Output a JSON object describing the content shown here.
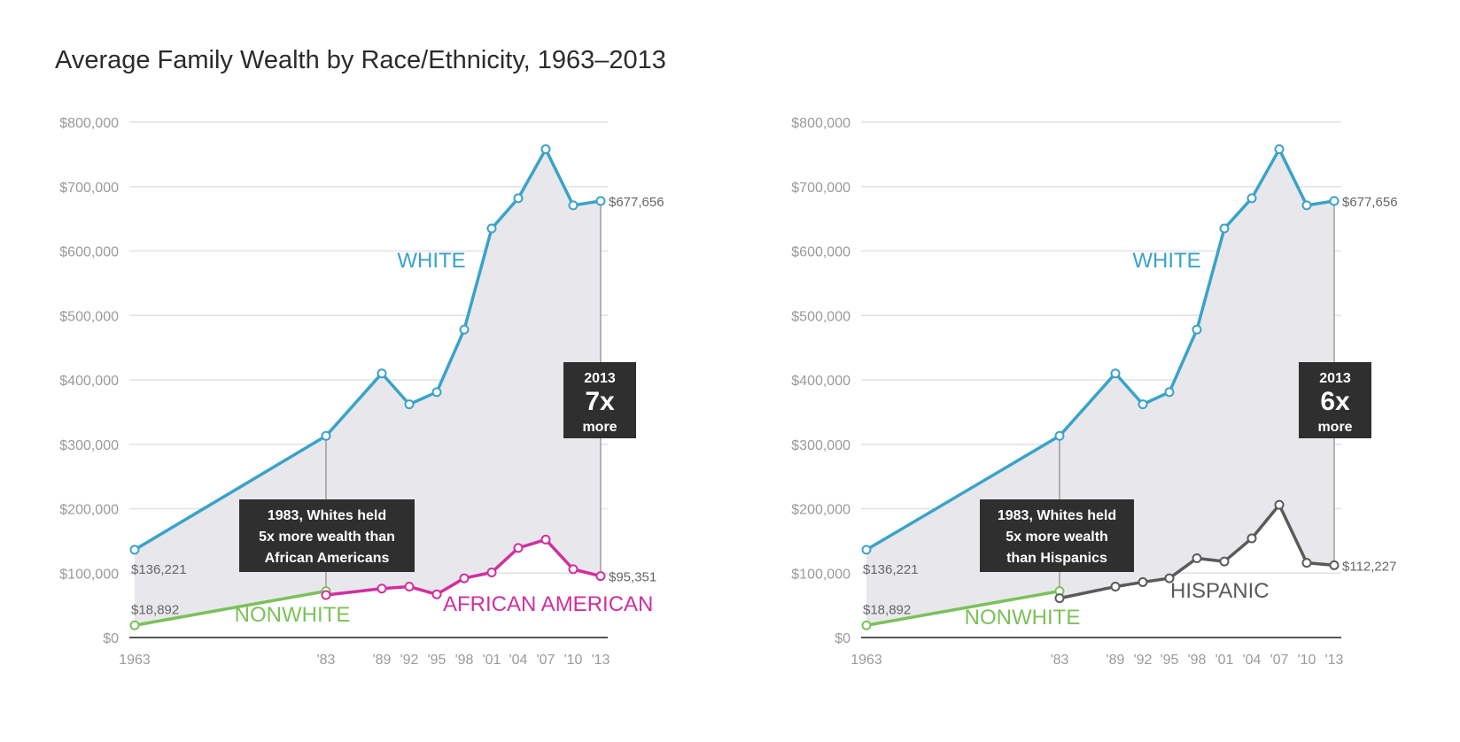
{
  "title": "Average Family Wealth by Race/Ethnicity, 1963–2013",
  "colors": {
    "white": "#3aa3c9",
    "nonwhite": "#7bc159",
    "african_american": "#d12f9e",
    "hispanic": "#5a5a5a",
    "fill": "#e8e8ec",
    "box": "#2f2f2f",
    "grid": "#e2e2e6"
  },
  "chart_data": [
    {
      "type": "line",
      "x": [
        1963,
        1983,
        1989,
        1992,
        1995,
        1998,
        2001,
        2004,
        2007,
        2010,
        2013
      ],
      "x_tick_labels": [
        "1963",
        "'83",
        "'89",
        "'92",
        "'95",
        "'98",
        "'01",
        "'04",
        "'07",
        "'10",
        "'13"
      ],
      "ylim": [
        0,
        800000
      ],
      "y_ticks": [
        0,
        100000,
        200000,
        300000,
        400000,
        500000,
        600000,
        700000,
        800000
      ],
      "y_tick_labels": [
        "$0",
        "$100,000",
        "$200,000",
        "$300,000",
        "$400,000",
        "$500,000",
        "$600,000",
        "$700,000",
        "$800,000"
      ],
      "grid": true,
      "series": [
        {
          "name": "WHITE",
          "x": [
            1963,
            1983,
            1989,
            1992,
            1995,
            1998,
            2001,
            2004,
            2007,
            2010,
            2013
          ],
          "values": [
            136221,
            313000,
            410000,
            362000,
            381000,
            478000,
            635000,
            682000,
            758000,
            671000,
            677656
          ]
        },
        {
          "name": "NONWHITE",
          "x": [
            1963,
            1983
          ],
          "values": [
            18892,
            72000
          ]
        },
        {
          "name": "AFRICAN AMERICAN",
          "x": [
            1983,
            1989,
            1992,
            1995,
            1998,
            2001,
            2004,
            2007,
            2010,
            2013
          ],
          "values": [
            66000,
            76000,
            79000,
            67000,
            92000,
            101000,
            139000,
            152000,
            106000,
            95351
          ]
        }
      ],
      "annotations": {
        "start_white": "$136,221",
        "start_nonwhite": "$18,892",
        "end_white": "$677,656",
        "end_minority": "$95,351",
        "note_1983": [
          "1983, Whites held",
          "5x more wealth than",
          "African Americans"
        ],
        "ratio_year": "2013",
        "ratio_value": "7x",
        "ratio_suffix": "more"
      }
    },
    {
      "type": "line",
      "x": [
        1963,
        1983,
        1989,
        1992,
        1995,
        1998,
        2001,
        2004,
        2007,
        2010,
        2013
      ],
      "x_tick_labels": [
        "1963",
        "'83",
        "'89",
        "'92",
        "'95",
        "'98",
        "'01",
        "'04",
        "'07",
        "'10",
        "'13"
      ],
      "ylim": [
        0,
        800000
      ],
      "y_ticks": [
        0,
        100000,
        200000,
        300000,
        400000,
        500000,
        600000,
        700000,
        800000
      ],
      "y_tick_labels": [
        "$0",
        "$100,000",
        "$200,000",
        "$300,000",
        "$400,000",
        "$500,000",
        "$600,000",
        "$700,000",
        "$800,000"
      ],
      "grid": true,
      "series": [
        {
          "name": "WHITE",
          "x": [
            1963,
            1983,
            1989,
            1992,
            1995,
            1998,
            2001,
            2004,
            2007,
            2010,
            2013
          ],
          "values": [
            136221,
            313000,
            410000,
            362000,
            381000,
            478000,
            635000,
            682000,
            758000,
            671000,
            677656
          ]
        },
        {
          "name": "NONWHITE",
          "x": [
            1963,
            1983
          ],
          "values": [
            18892,
            72000
          ]
        },
        {
          "name": "HISPANIC",
          "x": [
            1983,
            1989,
            1992,
            1995,
            1998,
            2001,
            2004,
            2007,
            2010,
            2013
          ],
          "values": [
            61000,
            79000,
            86000,
            92000,
            123000,
            118000,
            154000,
            206000,
            116000,
            112227
          ]
        }
      ],
      "annotations": {
        "start_white": "$136,221",
        "start_nonwhite": "$18,892",
        "end_white": "$677,656",
        "end_minority": "$112,227",
        "note_1983": [
          "1983, Whites held",
          "5x more wealth",
          "than Hispanics"
        ],
        "ratio_year": "2013",
        "ratio_value": "6x",
        "ratio_suffix": "more"
      }
    }
  ]
}
